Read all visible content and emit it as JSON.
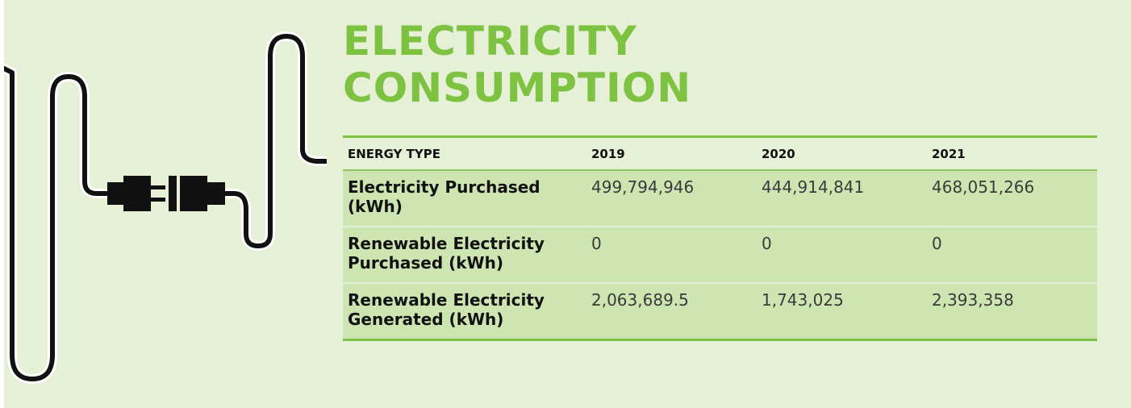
{
  "header": {
    "title": "ELECTRICITY CONSUMPTION"
  },
  "table": {
    "columns": [
      "ENERGY TYPE",
      "2019",
      "2020",
      "2021"
    ],
    "rows": [
      [
        "Electricity Purchased (kWh)",
        "499,794,946",
        "444,914,841",
        "468,051,266"
      ],
      [
        "Renewable Electricity Purchased (kWh)",
        "0",
        "0",
        "0"
      ],
      [
        "Renewable Electricity Generated (kWh)",
        "2,063,689.5",
        "1,743,025",
        "2,393,358"
      ]
    ]
  }
}
